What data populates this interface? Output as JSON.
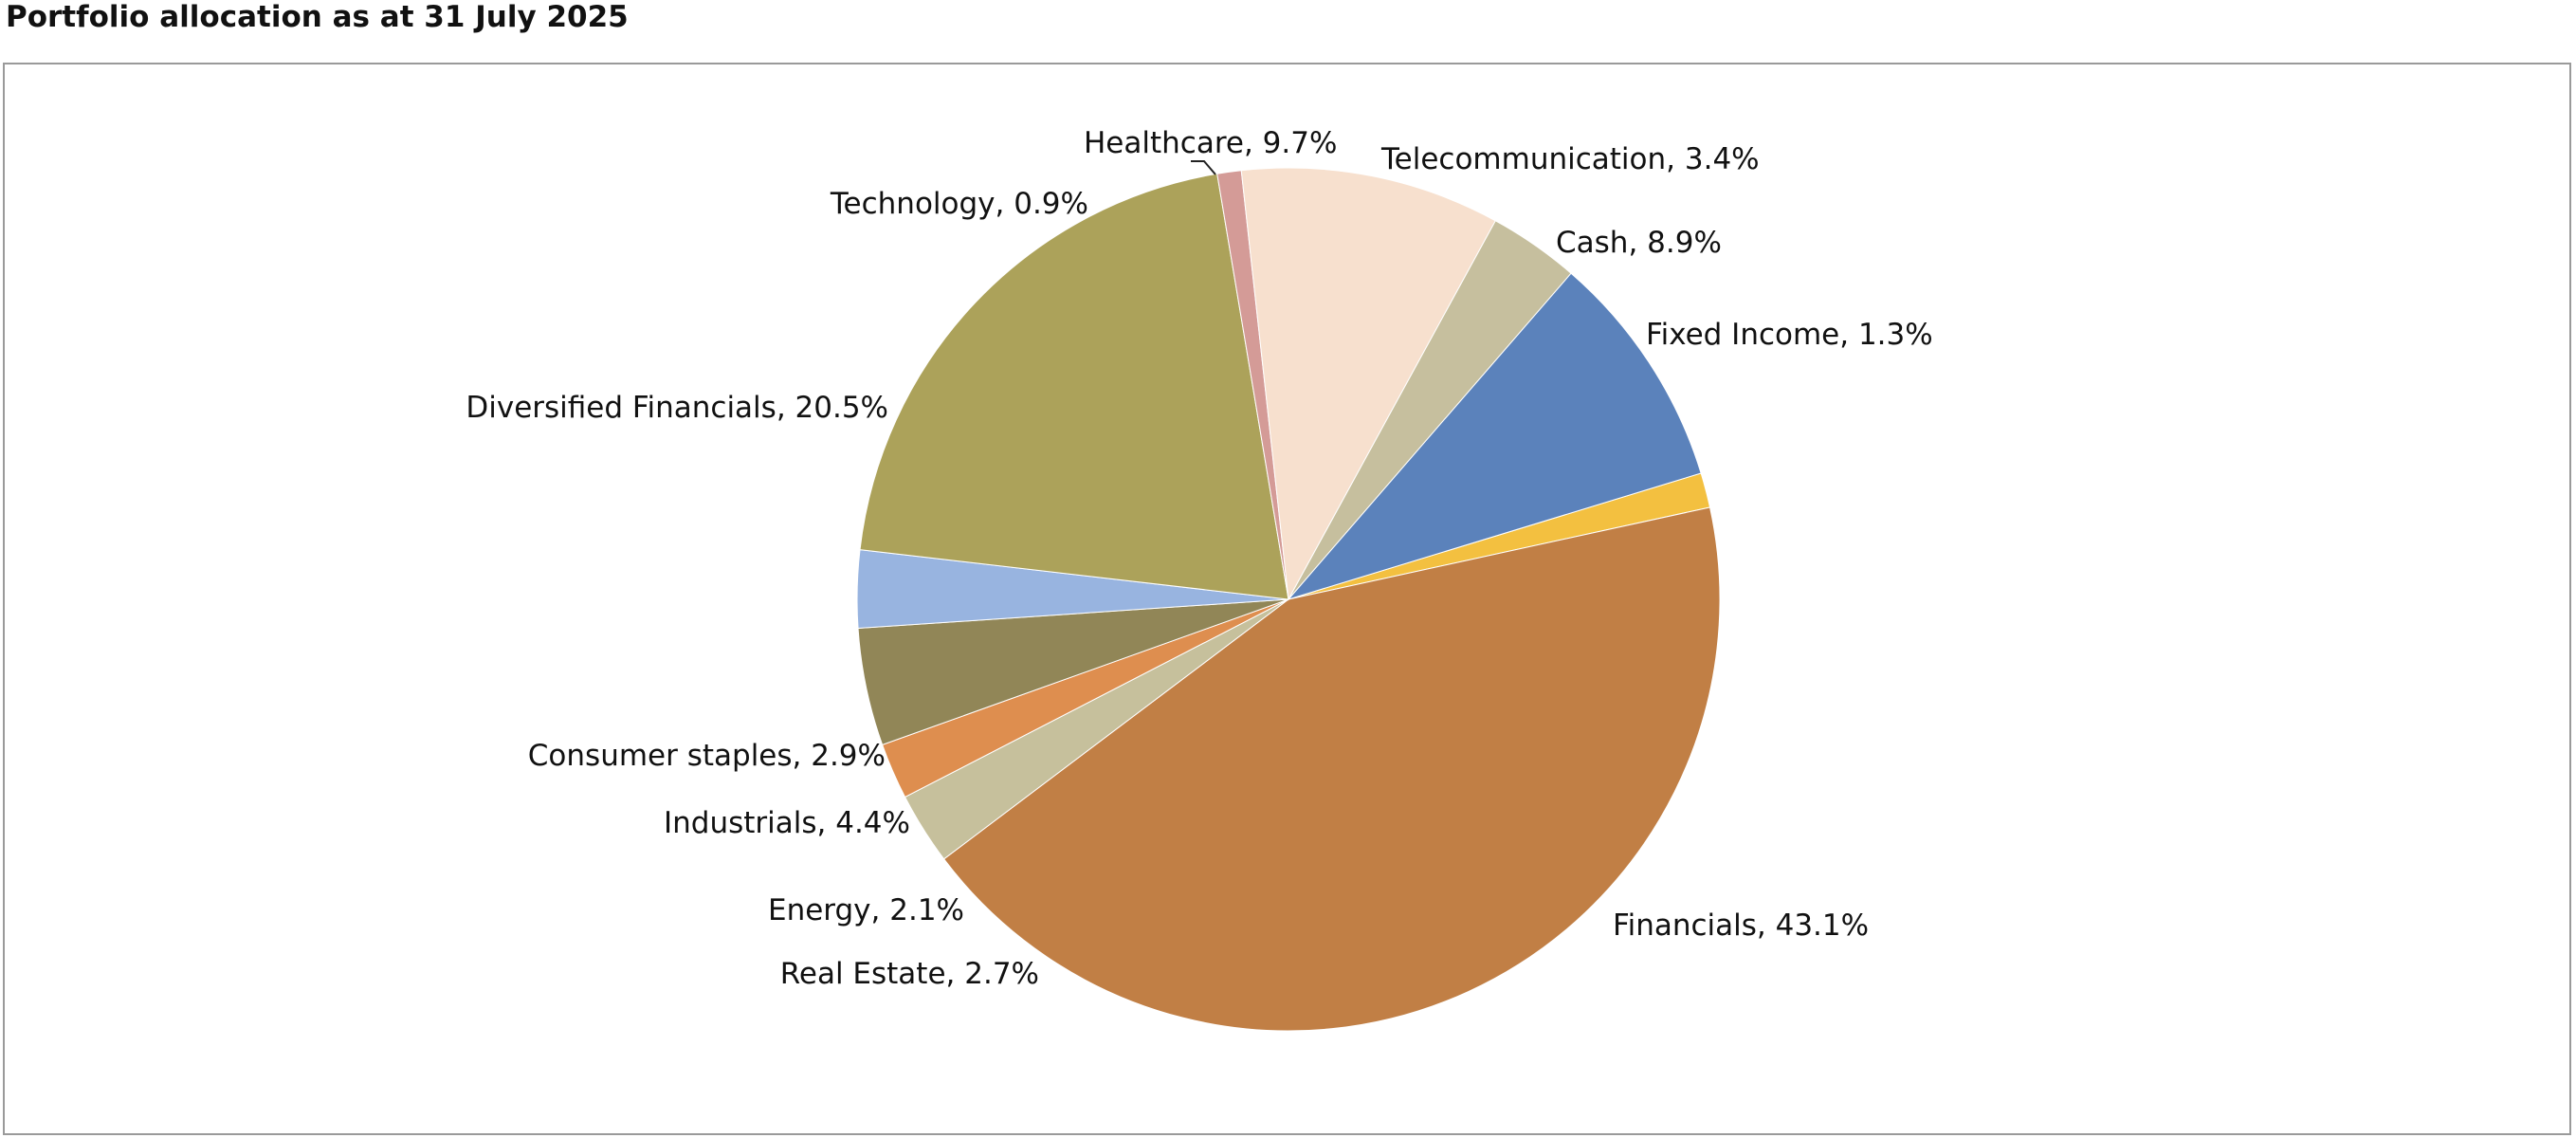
{
  "page": {
    "title": "Portfolio allocation as at 31 July 2025"
  },
  "chart_data": {
    "type": "pie",
    "title": "",
    "start_angle_deg": 73,
    "direction": "clockwise",
    "slices": [
      {
        "label": "Fixed Income, 1.3%",
        "name": "Fixed Income",
        "value": 1.3,
        "color": "#F3C040"
      },
      {
        "label": "Financials, 43.1%",
        "name": "Financials",
        "value": 43.1,
        "color": "#C17F45"
      },
      {
        "label": "Real Estate, 2.7%",
        "name": "Real Estate",
        "value": 2.7,
        "color": "#C6C09C"
      },
      {
        "label": "Energy, 2.1%",
        "name": "Energy",
        "value": 2.1,
        "color": "#DE8E4F"
      },
      {
        "label": "Industrials, 4.4%",
        "name": "Industrials",
        "value": 4.4,
        "color": "#918657"
      },
      {
        "label": "Consumer staples, 2.9%",
        "name": "Consumer staples",
        "value": 2.9,
        "color": "#98B4E0"
      },
      {
        "label": "Diversified Financials, 20.5%",
        "name": "Diversified Financials",
        "value": 20.5,
        "color": "#ACA25A"
      },
      {
        "label": "Technology, 0.9%",
        "name": "Technology",
        "value": 0.9,
        "color": "#D49B97"
      },
      {
        "label": "Healthcare, 9.7%",
        "name": "Healthcare",
        "value": 9.7,
        "color": "#F7E0CE"
      },
      {
        "label": "Telecommunication, 3.4%",
        "name": "Telecommunication",
        "value": 3.4,
        "color": "#C6BF9E"
      },
      {
        "label": "Cash, 8.9%",
        "name": "Cash",
        "value": 8.9,
        "color": "#5B82BB"
      }
    ],
    "legend": "none",
    "data_labels": "outside, category name and percentage"
  }
}
